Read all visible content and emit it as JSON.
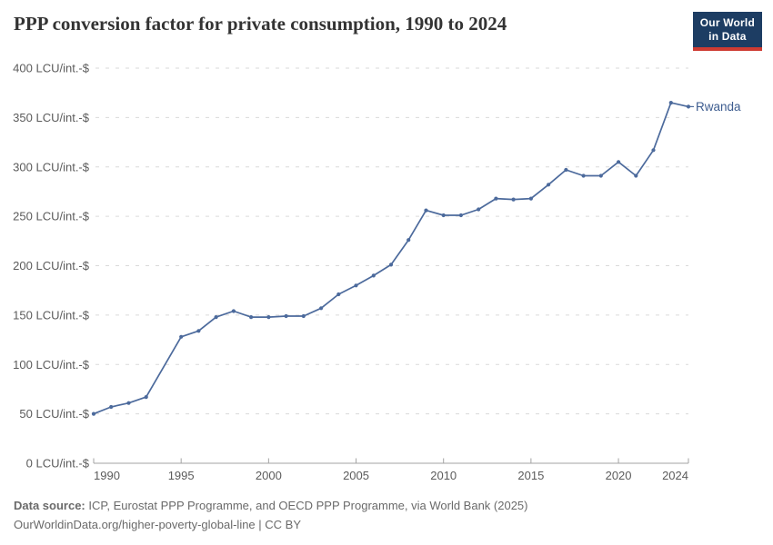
{
  "header": {
    "title": "PPP conversion factor for private consumption, 1990 to 2024",
    "logo": {
      "line1": "Our World",
      "line2": "in Data"
    }
  },
  "chart_data": {
    "type": "line",
    "title": "PPP conversion factor for private consumption, 1990 to 2024",
    "entity": "Rwanda",
    "unit": "LCU/int.-$",
    "xlim": [
      1990,
      2024
    ],
    "ylim": [
      0,
      400
    ],
    "grid": "horizontal dashed",
    "legend_position": "end-of-line label",
    "series": [
      {
        "name": "Rwanda",
        "points": [
          [
            1990,
            50
          ],
          [
            1991,
            57
          ],
          [
            1992,
            61
          ],
          [
            1993,
            67
          ],
          [
            1994,
            null
          ],
          [
            1995,
            128
          ],
          [
            1996,
            134
          ],
          [
            1997,
            148
          ],
          [
            1998,
            154
          ],
          [
            1999,
            148
          ],
          [
            2000,
            148
          ],
          [
            2001,
            149
          ],
          [
            2002,
            149
          ],
          [
            2003,
            157
          ],
          [
            2004,
            171
          ],
          [
            2005,
            180
          ],
          [
            2006,
            190
          ],
          [
            2007,
            201
          ],
          [
            2008,
            226
          ],
          [
            2009,
            256
          ],
          [
            2010,
            251
          ],
          [
            2011,
            251
          ],
          [
            2012,
            257
          ],
          [
            2013,
            268
          ],
          [
            2014,
            267
          ],
          [
            2015,
            268
          ],
          [
            2016,
            282
          ],
          [
            2017,
            297
          ],
          [
            2018,
            291
          ],
          [
            2019,
            291
          ],
          [
            2020,
            305
          ],
          [
            2021,
            291
          ],
          [
            2022,
            317
          ],
          [
            2023,
            365
          ],
          [
            2024,
            361
          ]
        ]
      }
    ],
    "xticks": [
      {
        "value": 1990,
        "label": "1990"
      },
      {
        "value": 1995,
        "label": "1995"
      },
      {
        "value": 2000,
        "label": "2000"
      },
      {
        "value": 2005,
        "label": "2005"
      },
      {
        "value": 2010,
        "label": "2010"
      },
      {
        "value": 2015,
        "label": "2015"
      },
      {
        "value": 2020,
        "label": "2020"
      },
      {
        "value": 2024,
        "label": "2024"
      }
    ],
    "yticks": [
      {
        "value": 0,
        "label": "0 LCU/int.-$"
      },
      {
        "value": 50,
        "label": "50 LCU/int.-$"
      },
      {
        "value": 100,
        "label": "100 LCU/int.-$"
      },
      {
        "value": 150,
        "label": "150 LCU/int.-$"
      },
      {
        "value": 200,
        "label": "200 LCU/int.-$"
      },
      {
        "value": 250,
        "label": "250 LCU/int.-$"
      },
      {
        "value": 300,
        "label": "300 LCU/int.-$"
      },
      {
        "value": 350,
        "label": "350 LCU/int.-$"
      },
      {
        "value": 400,
        "label": "400 LCU/int.-$"
      }
    ]
  },
  "colors": {
    "line": "#4C6A9C",
    "entity_label": "#3D5C8F",
    "gridline": "#DADADA",
    "axis": "#A3A3A3",
    "tick_text": "#5B5B5B",
    "title": "#333333",
    "footer": "#6A6A6A",
    "logo_bg": "#1D3D63",
    "logo_red": "#CE3B32"
  },
  "footer": {
    "source_label": "Data source:",
    "source_text": " ICP, Eurostat PPP Programme, and OECD PPP Programme, via World Bank (2025)",
    "license_text": "OurWorldinData.org/higher-poverty-global-line | CC BY"
  }
}
